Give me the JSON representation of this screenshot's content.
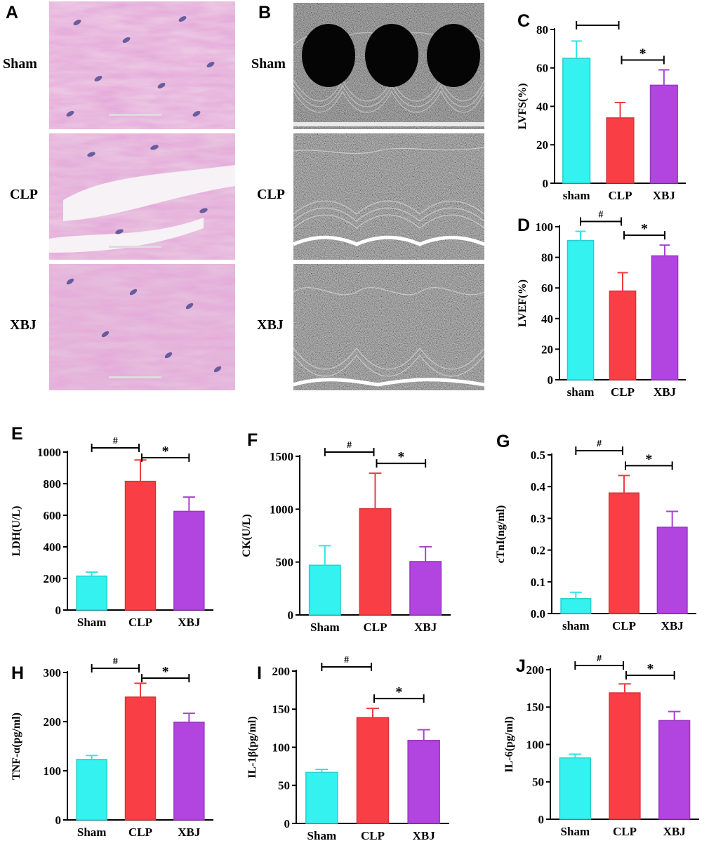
{
  "panels": {
    "A": {
      "label": "A",
      "rows": [
        "Sham",
        "CLP",
        "XBJ"
      ]
    },
    "B": {
      "label": "B",
      "rows": [
        "Sham",
        "CLP",
        "XBJ"
      ]
    }
  },
  "colors": {
    "sham": "#33f2f0",
    "clp": "#f93f45",
    "xbj": "#b244e0"
  },
  "chart_data": [
    {
      "id": "C",
      "panel_label": "C",
      "type": "bar",
      "categories": [
        "sham",
        "CLP",
        "XBJ"
      ],
      "values": [
        65,
        34,
        51
      ],
      "errors": [
        9,
        8,
        8
      ],
      "ylabel": "LVFS(%)",
      "ylim": [
        0,
        80
      ],
      "yticks": [
        0,
        20,
        40,
        60,
        80
      ],
      "annotations": [
        {
          "from": 0,
          "to": 1,
          "text": ""
        },
        {
          "from": 1,
          "to": 2,
          "text": "*"
        }
      ]
    },
    {
      "id": "D",
      "panel_label": "D",
      "type": "bar",
      "categories": [
        "sham",
        "CLP",
        "XBJ"
      ],
      "values": [
        91,
        58,
        81
      ],
      "errors": [
        6,
        12,
        7
      ],
      "ylabel": "LVEF(%)",
      "ylim": [
        0,
        100
      ],
      "yticks": [
        0,
        20,
        40,
        60,
        80,
        100
      ],
      "annotations": [
        {
          "from": 0,
          "to": 1,
          "text": "#"
        },
        {
          "from": 1,
          "to": 2,
          "text": "*"
        }
      ]
    },
    {
      "id": "E",
      "panel_label": "E",
      "type": "bar",
      "categories": [
        "Sham",
        "CLP",
        "XBJ"
      ],
      "values": [
        215,
        815,
        625
      ],
      "errors": [
        25,
        135,
        90
      ],
      "ylabel": "LDH(U/L)",
      "ylim": [
        0,
        1000
      ],
      "yticks": [
        0,
        200,
        400,
        600,
        800,
        1000
      ],
      "annotations": [
        {
          "from": 0,
          "to": 1,
          "text": "#"
        },
        {
          "from": 1,
          "to": 2,
          "text": "*"
        }
      ]
    },
    {
      "id": "F",
      "panel_label": "F",
      "type": "bar",
      "categories": [
        "Sham",
        "CLP",
        "XBJ"
      ],
      "values": [
        470,
        1005,
        505
      ],
      "errors": [
        185,
        335,
        140
      ],
      "ylabel": "CK(U/L)",
      "ylim": [
        0,
        1500
      ],
      "yticks": [
        0,
        500,
        1000,
        1500
      ],
      "annotations": [
        {
          "from": 0,
          "to": 1,
          "text": "#"
        },
        {
          "from": 1,
          "to": 2,
          "text": "*"
        }
      ]
    },
    {
      "id": "G",
      "panel_label": "G",
      "type": "bar",
      "categories": [
        "sham",
        "CLP",
        "XBJ"
      ],
      "values": [
        0.047,
        0.38,
        0.272
      ],
      "errors": [
        0.02,
        0.055,
        0.05
      ],
      "ylabel": "cTnI(ng/ml)",
      "ylim": [
        0,
        0.5
      ],
      "yticks": [
        0.0,
        0.1,
        0.2,
        0.3,
        0.4,
        0.5
      ],
      "tick_decimals": 1,
      "annotations": [
        {
          "from": 0,
          "to": 1,
          "text": "#"
        },
        {
          "from": 1,
          "to": 2,
          "text": "*"
        }
      ]
    },
    {
      "id": "H",
      "panel_label": "H",
      "type": "bar",
      "categories": [
        "Sham",
        "CLP",
        "XBJ"
      ],
      "values": [
        123,
        250,
        199
      ],
      "errors": [
        8,
        28,
        18
      ],
      "ylabel": "TNF-α(pg/ml)",
      "ylim": [
        0,
        300
      ],
      "yticks": [
        0,
        100,
        200,
        300
      ],
      "annotations": [
        {
          "from": 0,
          "to": 1,
          "text": "#"
        },
        {
          "from": 1,
          "to": 2,
          "text": "*"
        }
      ]
    },
    {
      "id": "I",
      "panel_label": "I",
      "type": "bar",
      "categories": [
        "Sham",
        "CLP",
        "XBJ"
      ],
      "values": [
        67,
        139,
        109
      ],
      "errors": [
        4,
        12,
        14
      ],
      "ylabel": "IL-1β(pg/ml)",
      "ylim": [
        0,
        200
      ],
      "yticks": [
        0,
        50,
        100,
        150,
        200
      ],
      "annotations": [
        {
          "from": 0,
          "to": 1,
          "text": "#"
        },
        {
          "from": 1,
          "to": 2,
          "text": "*"
        }
      ]
    },
    {
      "id": "J",
      "panel_label": "J",
      "type": "bar",
      "categories": [
        "Sham",
        "CLP",
        "XBJ"
      ],
      "values": [
        82,
        169,
        132
      ],
      "errors": [
        5,
        12,
        12
      ],
      "ylabel": "IL-6(pg/ml)",
      "ylim": [
        0,
        200
      ],
      "yticks": [
        0,
        50,
        100,
        150,
        200
      ],
      "annotations": [
        {
          "from": 0,
          "to": 1,
          "text": "#"
        },
        {
          "from": 1,
          "to": 2,
          "text": "*"
        }
      ]
    }
  ]
}
